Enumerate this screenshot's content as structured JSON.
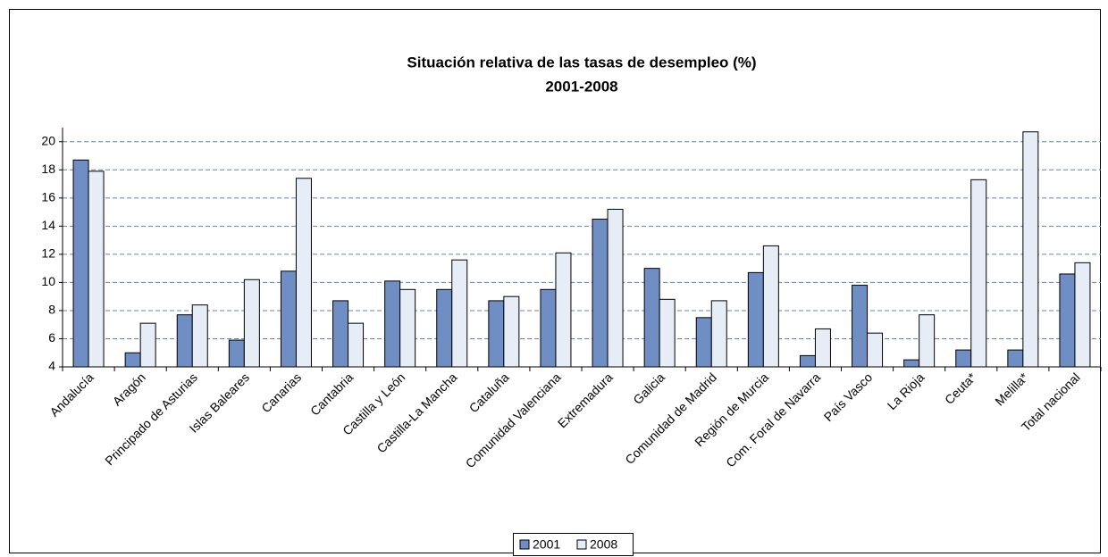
{
  "chart_data": {
    "type": "bar",
    "title": "Situación relativa de las tasas de desempleo (%)",
    "subtitle": "2001-2008",
    "categories": [
      "Andalucía",
      "Aragón",
      "Principado de Asturias",
      "Islas Baleares",
      "Canarias",
      "Cantabria",
      "Castilla y León",
      "Castilla-La Mancha",
      "Cataluña",
      "Comunidad Valenciana",
      "Extremadura",
      "Galicia",
      "Comunidad de Madrid",
      "Región de Murcia",
      "Com. Foral de Navarra",
      "País Vasco",
      "La Rioja",
      "Ceuta*",
      "Melilla*",
      "Total nacional"
    ],
    "series": [
      {
        "name": "2001",
        "color": "#6f8fc4",
        "values": [
          18.7,
          5.0,
          7.7,
          5.9,
          10.8,
          8.7,
          10.1,
          9.5,
          8.7,
          9.5,
          14.5,
          11.0,
          7.5,
          10.7,
          4.8,
          9.8,
          4.5,
          5.2,
          5.2,
          10.6
        ]
      },
      {
        "name": "2008",
        "color": "#e6edf7",
        "values": [
          17.9,
          7.1,
          8.4,
          10.2,
          17.4,
          7.1,
          9.5,
          11.6,
          9.0,
          12.1,
          15.2,
          8.8,
          8.7,
          12.6,
          6.7,
          6.4,
          7.7,
          17.3,
          20.7,
          11.4
        ]
      }
    ],
    "ylim": [
      4,
      21
    ],
    "yticks": [
      4,
      6,
      8,
      10,
      12,
      14,
      16,
      18,
      20
    ],
    "grid": true
  }
}
